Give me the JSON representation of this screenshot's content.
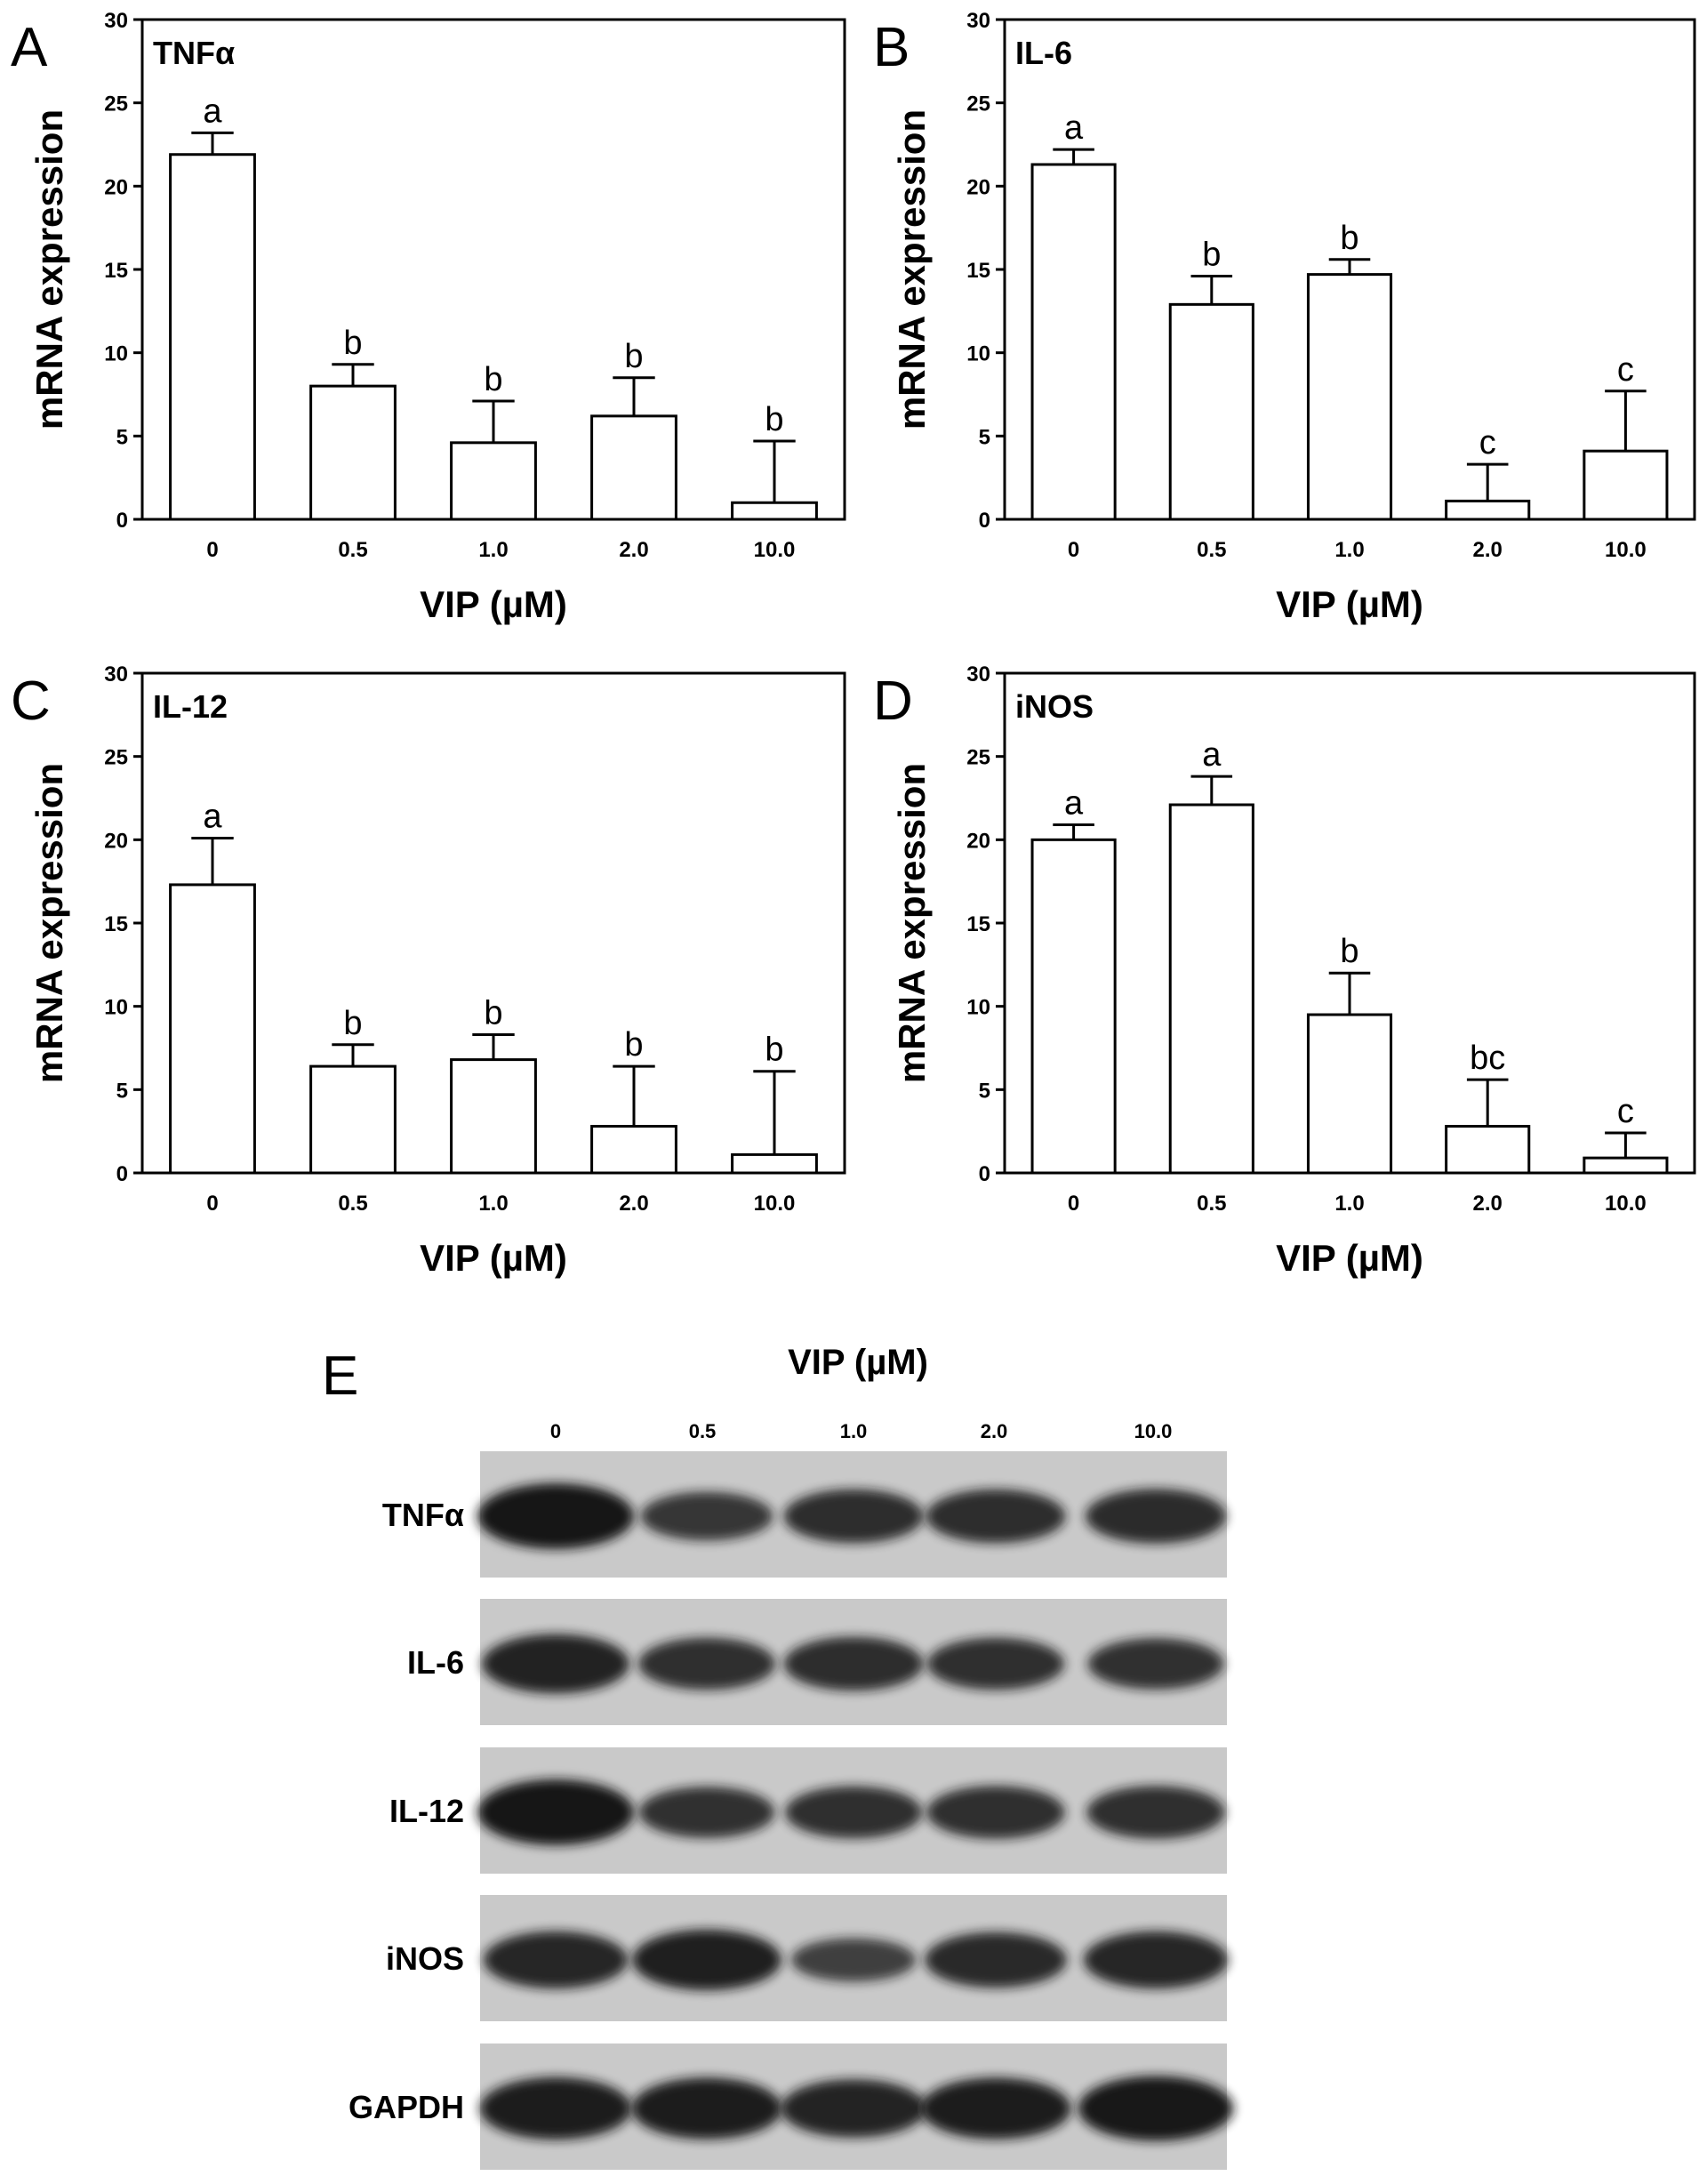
{
  "chart_data": [
    {
      "type": "bar",
      "panel": "A",
      "title": "TNFα",
      "xlabel": "VIP (µM)",
      "ylabel": "mRNA expression",
      "categories": [
        "0",
        "0.5",
        "1.0",
        "2.0",
        "10.0"
      ],
      "values": [
        21.9,
        8.0,
        4.6,
        6.2,
        1.0
      ],
      "errors": [
        1.3,
        1.3,
        2.5,
        2.3,
        3.7
      ],
      "significance": [
        "a",
        "b",
        "b",
        "b",
        "b"
      ],
      "ylim": [
        0,
        30
      ],
      "yticks": [
        "0",
        "5",
        "10",
        "15",
        "20",
        "25",
        "30"
      ],
      "grid": false
    },
    {
      "type": "bar",
      "panel": "B",
      "title": "IL-6",
      "xlabel": "VIP (µM)",
      "ylabel": "mRNA expression",
      "categories": [
        "0",
        "0.5",
        "1.0",
        "2.0",
        "10.0"
      ],
      "values": [
        21.3,
        12.9,
        14.7,
        1.1,
        4.1
      ],
      "errors": [
        0.9,
        1.7,
        0.9,
        2.2,
        3.6
      ],
      "significance": [
        "a",
        "b",
        "b",
        "c",
        "c"
      ],
      "ylim": [
        0,
        30
      ],
      "yticks": [
        "0",
        "5",
        "10",
        "15",
        "20",
        "25",
        "30"
      ],
      "grid": false
    },
    {
      "type": "bar",
      "panel": "C",
      "title": "IL-12",
      "xlabel": "VIP (µM)",
      "ylabel": "mRNA expression",
      "categories": [
        "0",
        "0.5",
        "1.0",
        "2.0",
        "10.0"
      ],
      "values": [
        17.3,
        6.4,
        6.8,
        2.8,
        1.1
      ],
      "errors": [
        2.8,
        1.3,
        1.5,
        3.6,
        5.0
      ],
      "significance": [
        "a",
        "b",
        "b",
        "b",
        "b"
      ],
      "ylim": [
        0,
        30
      ],
      "yticks": [
        "0",
        "5",
        "10",
        "15",
        "20",
        "25",
        "30"
      ],
      "grid": false
    },
    {
      "type": "bar",
      "panel": "D",
      "title": "iNOS",
      "xlabel": "VIP (µM)",
      "ylabel": "mRNA expression",
      "categories": [
        "0",
        "0.5",
        "1.0",
        "2.0",
        "10.0"
      ],
      "values": [
        20.0,
        22.1,
        9.5,
        2.8,
        0.9
      ],
      "errors": [
        0.9,
        1.7,
        2.5,
        2.8,
        1.5
      ],
      "significance": [
        "a",
        "a",
        "b",
        "bc",
        "c"
      ],
      "ylim": [
        0,
        30
      ],
      "yticks": [
        "0",
        "5",
        "10",
        "15",
        "20",
        "25",
        "30"
      ],
      "grid": false
    }
  ],
  "blot": {
    "panel": "E",
    "header": "VIP (µM)",
    "lanes": [
      "0",
      "0.5",
      "1.0",
      "2.0",
      "10.0"
    ],
    "rows": [
      {
        "label": "TNFα",
        "intensity": [
          1.0,
          0.6,
          0.72,
          0.72,
          0.74
        ]
      },
      {
        "label": "IL-6",
        "intensity": [
          0.85,
          0.68,
          0.72,
          0.68,
          0.66
        ]
      },
      {
        "label": "IL-12",
        "intensity": [
          1.0,
          0.66,
          0.68,
          0.7,
          0.7
        ]
      },
      {
        "label": "iNOS",
        "intensity": [
          0.8,
          0.88,
          0.48,
          0.76,
          0.8
        ]
      },
      {
        "label": "GAPDH",
        "intensity": [
          0.92,
          0.9,
          0.82,
          0.9,
          0.98
        ]
      }
    ]
  },
  "colors": {
    "ink": "#000000",
    "bar_fill": "#ffffff",
    "blot_background": "#c9c9c9",
    "band_color": "#141414"
  }
}
